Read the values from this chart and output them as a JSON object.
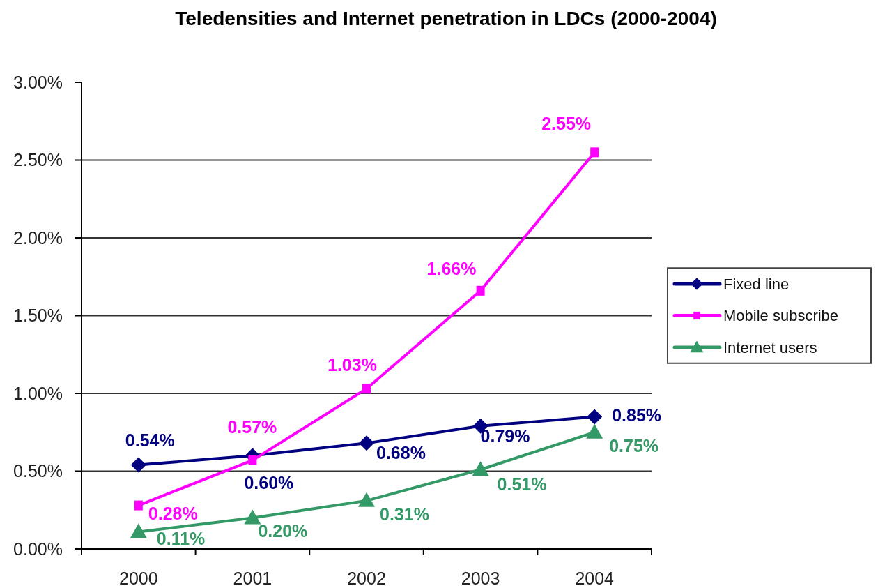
{
  "chart_data": {
    "type": "line",
    "title": "Teledensities and Internet penetration in LDCs (2000-2004)",
    "categories": [
      "2000",
      "2001",
      "2002",
      "2003",
      "2004"
    ],
    "series": [
      {
        "name": "Fixed line",
        "color": "#000080",
        "marker": "diamond",
        "values": [
          0.54,
          0.6,
          0.68,
          0.79,
          0.85
        ],
        "value_labels": [
          "0.54%",
          "0.60%",
          "0.68%",
          "0.79%",
          "0.85%"
        ]
      },
      {
        "name": "Mobile subscribe",
        "color": "#ff00ff",
        "marker": "square",
        "values": [
          0.28,
          0.57,
          1.03,
          1.66,
          2.55
        ],
        "value_labels": [
          "0.28%",
          "0.57%",
          "1.03%",
          "1.66%",
          "2.55%"
        ]
      },
      {
        "name": "Internet users",
        "color": "#339966",
        "marker": "triangle",
        "values": [
          0.11,
          0.2,
          0.31,
          0.51,
          0.75
        ],
        "value_labels": [
          "0.11%",
          "0.20%",
          "0.31%",
          "0.51%",
          "0.75%"
        ]
      }
    ],
    "ylim": [
      0,
      3
    ],
    "yticks": [
      {
        "value": 0,
        "label": "0.00%"
      },
      {
        "value": 0.5,
        "label": "0.50%"
      },
      {
        "value": 1,
        "label": "1.00%"
      },
      {
        "value": 1.5,
        "label": "1.50%"
      },
      {
        "value": 2,
        "label": "2.00%"
      },
      {
        "value": 2.5,
        "label": "2.50%"
      },
      {
        "value": 3,
        "label": "3.00%"
      }
    ],
    "grid": "y",
    "legend": "right"
  }
}
